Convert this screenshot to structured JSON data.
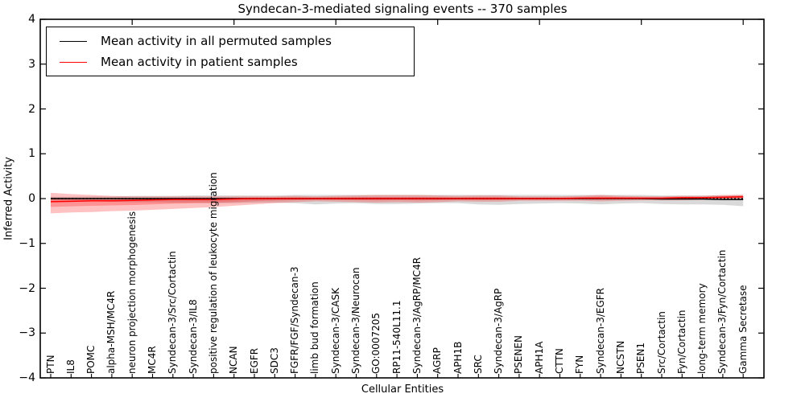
{
  "chart_data": {
    "type": "line",
    "title": "Syndecan-3-mediated signaling events -- 370 samples",
    "xlabel": "Cellular Entities",
    "ylabel": "Inferred Activity",
    "ylim": [
      -4,
      4
    ],
    "grid": false,
    "legend_position": "upper left",
    "frame_color": "#000000",
    "yticks": [
      {
        "value": 4,
        "label": "4"
      },
      {
        "value": 3,
        "label": "3"
      },
      {
        "value": 2,
        "label": "2"
      },
      {
        "value": 1,
        "label": "1"
      },
      {
        "value": 0,
        "label": "0"
      },
      {
        "value": -1,
        "label": "−1"
      },
      {
        "value": -2,
        "label": "−2"
      },
      {
        "value": -3,
        "label": "−3"
      },
      {
        "value": -4,
        "label": "−4"
      }
    ],
    "categories": [
      "PTN",
      "IL8",
      "POMC",
      "alpha-MSH/MC4R",
      "neuron projection morphogenesis",
      "MC4R",
      "Syndecan-3/Src/Cortactin",
      "Syndecan-3/IL8",
      "positive regulation of leukocyte migration",
      "NCAN",
      "EGFR",
      "SDC3",
      "FGFR/FGF/Syndecan-3",
      "limb bud formation",
      "Syndecan-3/CASK",
      "Syndecan-3/Neurocan",
      "GO:0007205",
      "RP11-540L11.1",
      "Syndecan-3/AgRP/MC4R",
      "AGRP",
      "APH1B",
      "SRC",
      "Syndecan-3/AgRP",
      "PSENEN",
      "APH1A",
      "CTTN",
      "FYN",
      "Syndecan-3/EGFR",
      "NCSTN",
      "PSEN1",
      "Src/Cortactin",
      "Fyn/Cortactin",
      "long-term memory",
      "Syndecan-3/Fyn/Cortactin",
      "Gamma Secretase"
    ],
    "reference_line": {
      "y": 0,
      "style": "dotted",
      "color": "#000000"
    },
    "series": [
      {
        "name": "Mean activity in all permuted samples",
        "color": "#000000",
        "values": [
          0,
          0,
          0,
          0,
          0,
          0,
          0,
          0,
          0,
          0,
          0,
          0,
          0,
          0,
          0,
          0,
          0,
          0,
          0,
          0,
          0,
          0,
          0,
          0,
          0,
          0,
          0,
          0,
          0,
          0,
          -0.01,
          -0.01,
          -0.01,
          -0.02,
          -0.02
        ]
      },
      {
        "name": "Mean activity in patient samples",
        "color": "#ff0000",
        "values": [
          -0.07,
          -0.06,
          -0.05,
          -0.05,
          -0.04,
          -0.03,
          -0.02,
          -0.02,
          -0.02,
          -0.01,
          0,
          0,
          0,
          0,
          0,
          0,
          0,
          0,
          0,
          0,
          0,
          0,
          0,
          0,
          0,
          0,
          0.01,
          0.01,
          0.01,
          0.01,
          0.01,
          0.02,
          0.02,
          0.03,
          0.04
        ]
      }
    ],
    "bands": [
      {
        "name": "permuted-samples-range",
        "color": "rgba(0,0,0,0.15)",
        "upper": [
          0.04,
          0.04,
          0.05,
          0.05,
          0.06,
          0.06,
          0.06,
          0.07,
          0.07,
          0.07,
          0.07,
          0.07,
          0.08,
          0.08,
          0.08,
          0.08,
          0.08,
          0.08,
          0.08,
          0.08,
          0.08,
          0.08,
          0.08,
          0.08,
          0.08,
          0.08,
          0.08,
          0.08,
          0.08,
          0.08,
          0.07,
          0.07,
          0.07,
          0.07,
          0.07
        ],
        "lower": [
          -0.05,
          -0.05,
          -0.06,
          -0.07,
          -0.08,
          -0.08,
          -0.09,
          -0.09,
          -0.1,
          -0.1,
          -0.09,
          -0.09,
          -0.1,
          -0.13,
          -0.11,
          -0.1,
          -0.12,
          -0.12,
          -0.11,
          -0.1,
          -0.1,
          -0.13,
          -0.14,
          -0.12,
          -0.11,
          -0.1,
          -0.11,
          -0.13,
          -0.11,
          -0.1,
          -0.12,
          -0.13,
          -0.13,
          -0.14,
          -0.17
        ]
      },
      {
        "name": "patient-samples-range",
        "color": "rgba(255,0,0,0.24)",
        "upper": [
          0.13,
          0.1,
          0.08,
          0.06,
          0.05,
          0.05,
          0.05,
          0.05,
          0.05,
          0.05,
          0.05,
          0.05,
          0.06,
          0.05,
          0.06,
          0.07,
          0.08,
          0.08,
          0.08,
          0.07,
          0.06,
          0.07,
          0.07,
          0.05,
          0.05,
          0.05,
          0.06,
          0.08,
          0.06,
          0.05,
          0.05,
          0.06,
          0.06,
          0.08,
          0.09
        ],
        "lower": [
          -0.33,
          -0.31,
          -0.3,
          -0.28,
          -0.27,
          -0.25,
          -0.23,
          -0.21,
          -0.19,
          -0.16,
          -0.13,
          -0.1,
          -0.08,
          -0.06,
          -0.07,
          -0.08,
          -0.09,
          -0.08,
          -0.09,
          -0.08,
          -0.06,
          -0.07,
          -0.07,
          -0.05,
          -0.05,
          -0.05,
          -0.05,
          -0.06,
          -0.05,
          -0.04,
          -0.04,
          -0.04,
          -0.03,
          -0.02,
          -0.01
        ]
      }
    ]
  }
}
